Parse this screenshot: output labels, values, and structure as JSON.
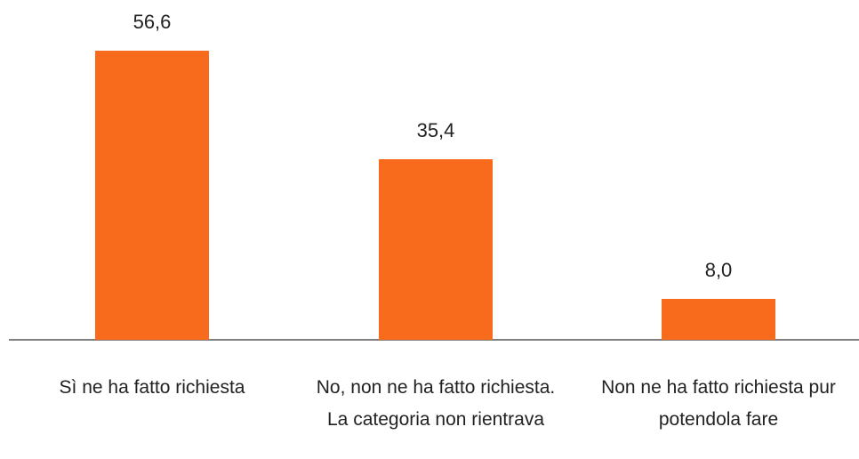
{
  "chart_data": {
    "type": "bar",
    "categories": [
      "Sì ne ha fatto richiesta",
      "No, non ne ha fatto richiesta. La categoria non rientrava",
      "Non ne ha fatto richiesta pur potendola fare"
    ],
    "values": [
      56.6,
      35.4,
      8.0
    ],
    "value_labels": [
      "56,6",
      "35,4",
      "8,0"
    ],
    "color": "#f96b1c"
  }
}
